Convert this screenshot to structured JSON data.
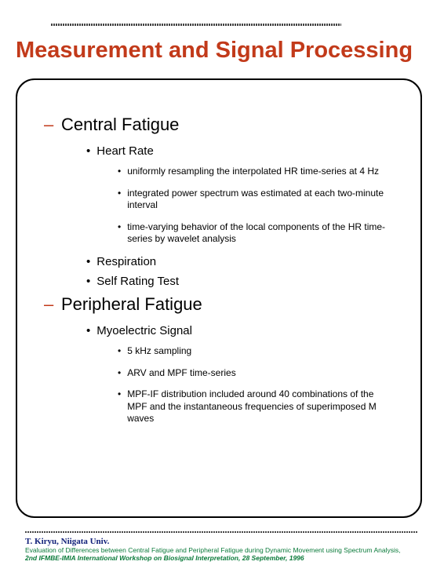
{
  "title": "Measurement and Signal Processing",
  "colors": {
    "accent": "#c23a1a",
    "text": "#000000",
    "footer_author": "#12217a",
    "footer_meta": "#0a7a3a",
    "rule": "#444444",
    "background": "#ffffff",
    "box_border": "#000000"
  },
  "typography": {
    "title_fontsize": 29,
    "section_fontsize": 22,
    "lvl2_fontsize": 15,
    "lvl3_fontsize": 12,
    "footer_author_fontsize": 11,
    "footer_meta_fontsize": 8.5
  },
  "layout": {
    "box_radius": 24,
    "box_border_width": 2
  },
  "sections": [
    {
      "heading": "Central Fatigue",
      "items": [
        {
          "label": "Heart Rate",
          "sub": [
            "uniformly resampling the interpolated HR time-series at 4 Hz",
            "integrated power spectrum was estimated at each two-minute interval",
            "time-varying behavior of the local components of the HR time-series by wavelet analysis"
          ]
        },
        {
          "label": "Respiration",
          "sub": []
        },
        {
          "label": "Self Rating Test",
          "sub": []
        }
      ]
    },
    {
      "heading": "Peripheral Fatigue",
      "items": [
        {
          "label": "Myoelectric Signal",
          "sub": [
            "5 kHz sampling",
            "ARV and MPF time-series",
            "MPF-IF distribution included around 40 combinations of the MPF and the instantaneous frequencies of superimposed M waves"
          ]
        }
      ]
    }
  ],
  "footer": {
    "author": "T. Kiryu, Niigata Univ.",
    "line2": "Evaluation of Differences between Central Fatigue and Peripheral Fatigue during Dynamic Movement using Spectrum Analysis,",
    "line3": "2nd IFMBE-IMIA International Workshop on Biosignal Interpretation, 28 September, 1996"
  }
}
